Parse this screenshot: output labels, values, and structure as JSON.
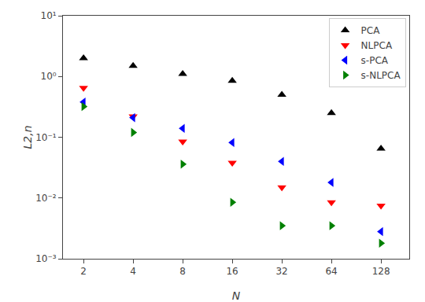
{
  "chart_data": {
    "type": "scatter",
    "xlabel": "N",
    "ylabel": "L2,n",
    "x": [
      2,
      4,
      8,
      16,
      32,
      64,
      128
    ],
    "series": [
      {
        "name": "PCA",
        "color": "#000000",
        "marker": "triangle-up",
        "values": [
          2.0,
          1.5,
          1.1,
          0.85,
          0.5,
          0.25,
          0.065
        ]
      },
      {
        "name": "NLPCA",
        "color": "#ff0000",
        "marker": "triangle-down",
        "values": [
          0.65,
          0.22,
          0.085,
          0.038,
          0.015,
          0.0085,
          0.0075
        ]
      },
      {
        "name": "s-PCA",
        "color": "#0000ff",
        "marker": "triangle-left",
        "values": [
          0.38,
          0.21,
          0.14,
          0.082,
          0.04,
          0.018,
          0.0028
        ]
      },
      {
        "name": "s-NLPCA",
        "color": "#008000",
        "marker": "triangle-right",
        "values": [
          0.32,
          0.12,
          0.036,
          0.0085,
          0.0035,
          0.0035,
          0.0018
        ]
      }
    ],
    "xlim": [
      1.5,
      190
    ],
    "ylim": [
      0.001,
      10
    ],
    "xticks": [
      2,
      4,
      8,
      16,
      32,
      64,
      128
    ],
    "yticks": [
      {
        "value": 0.001,
        "label": "10⁻³"
      },
      {
        "value": 0.01,
        "label": "10⁻²"
      },
      {
        "value": 0.1,
        "label": "10⁻¹"
      },
      {
        "value": 1,
        "label": "10⁰"
      },
      {
        "value": 10,
        "label": "10¹"
      }
    ],
    "log": true,
    "grid": false,
    "legend": "upper right"
  }
}
